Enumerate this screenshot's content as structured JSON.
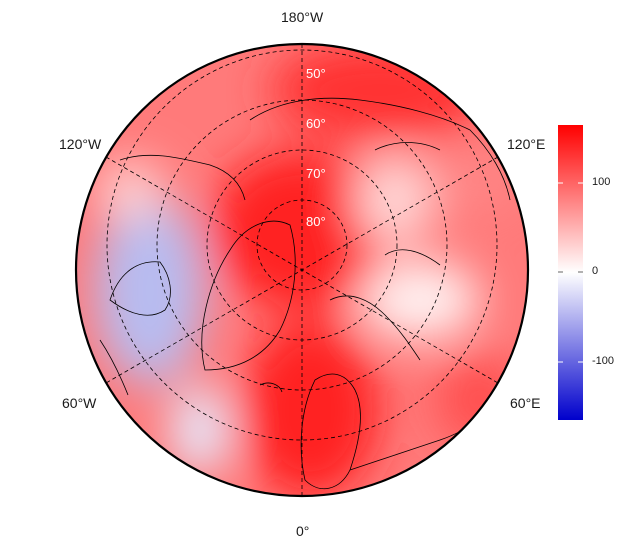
{
  "map": {
    "projection": "north polar stereographic",
    "longitude_labels": {
      "top": "180°W",
      "upper_left": "120°W",
      "upper_right": "120°E",
      "lower_left": "60°W",
      "lower_right": "60°E",
      "bottom": "0°"
    },
    "latitude_labels": [
      "50°",
      "60°",
      "70°",
      "80°"
    ],
    "graticule": "dashed",
    "coastlines": "black"
  },
  "colorbar": {
    "ticks": [
      "100",
      "0",
      "-100"
    ],
    "range": [
      -165,
      165
    ],
    "colors": {
      "low": "#0000cc",
      "mid": "#ffffff",
      "high": "#ff0000"
    }
  },
  "field": {
    "description_values": [
      {
        "region": "north pole",
        "value": 150
      },
      {
        "region": "north atlantic / scandinavia",
        "value": 150
      },
      {
        "region": "canada / hudson bay",
        "value": -60
      },
      {
        "region": "central siberia",
        "value": 10
      },
      {
        "region": "east siberia",
        "value": 60
      }
    ]
  }
}
